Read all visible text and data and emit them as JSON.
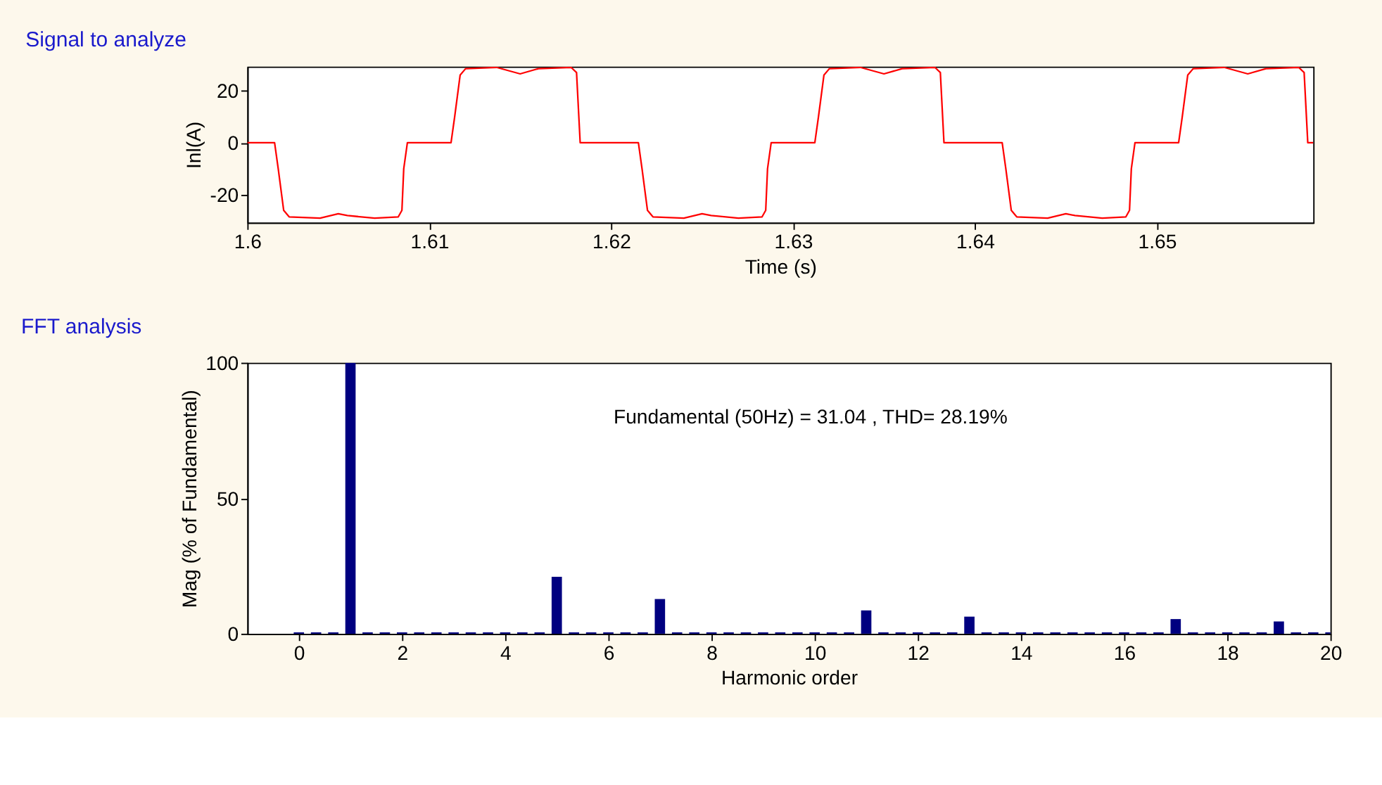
{
  "chart_data": [
    {
      "type": "line",
      "title": "Signal to analyze",
      "xlabel": "Time (s)",
      "ylabel": "Inl(A)",
      "xlim": [
        1.6,
        1.6586
      ],
      "xticks": [
        1.6,
        1.61,
        1.62,
        1.63,
        1.64,
        1.65
      ],
      "ylim": [
        -30.7,
        29.3
      ],
      "yticks": [
        -20,
        0,
        20
      ],
      "grid": false,
      "series": [
        {
          "color": "#ff0000",
          "x": [
            1.6,
            1.6015,
            1.6017,
            1.602,
            1.6023,
            1.604,
            1.605,
            1.6055,
            1.607,
            1.6083,
            1.6085,
            1.6086,
            1.6088,
            1.6112,
            1.6114,
            1.6117,
            1.612,
            1.6137,
            1.615,
            1.616,
            1.6178,
            1.6181,
            1.6183,
            1.62,
            1.6215,
            1.6217,
            1.622,
            1.6223,
            1.624,
            1.625,
            1.6255,
            1.627,
            1.6283,
            1.6285,
            1.6286,
            1.6288,
            1.6312,
            1.6314,
            1.6317,
            1.632,
            1.6337,
            1.635,
            1.636,
            1.6378,
            1.6381,
            1.6383,
            1.64,
            1.6415,
            1.6417,
            1.642,
            1.6423,
            1.644,
            1.645,
            1.6455,
            1.647,
            1.6483,
            1.6485,
            1.6486,
            1.6488,
            1.6512,
            1.6514,
            1.6517,
            1.652,
            1.6537,
            1.655,
            1.656,
            1.6578,
            1.6581,
            1.6583,
            1.6586
          ],
          "values": [
            0,
            0,
            -10,
            -26,
            -28.5,
            -29,
            -27.3,
            -28,
            -29,
            -28.5,
            -26,
            -10,
            0,
            0,
            10,
            26,
            28.5,
            29,
            26.5,
            28.5,
            29,
            27,
            0,
            0,
            0,
            -10,
            -26,
            -28.5,
            -29,
            -27.3,
            -28,
            -29,
            -28.5,
            -26,
            -10,
            0,
            0,
            10,
            26,
            28.5,
            29,
            26.5,
            28.5,
            29,
            27,
            0,
            0,
            0,
            -10,
            -26,
            -28.5,
            -29,
            -27.3,
            -28,
            -29,
            -28.5,
            -26,
            -10,
            0,
            0,
            10,
            26,
            28.5,
            29,
            26.5,
            28.5,
            29,
            27,
            0,
            0
          ]
        }
      ]
    },
    {
      "type": "bar",
      "title": "FFT analysis",
      "xlabel": "Harmonic order",
      "ylabel": "Mag (% of Fundamental)",
      "xlim": [
        -1,
        20
      ],
      "xticks": [
        0,
        2,
        4,
        6,
        8,
        10,
        12,
        14,
        16,
        18,
        20
      ],
      "ylim": [
        0,
        100
      ],
      "yticks": [
        0,
        50,
        100
      ],
      "grid": false,
      "annotations": [
        "Fundamental (50Hz) = 31.04 , THD= 28.19%"
      ],
      "series": [
        {
          "color": "#000080",
          "x": [
            0,
            0.333,
            0.667,
            1,
            1.333,
            1.667,
            2,
            2.333,
            2.667,
            3,
            3.333,
            3.667,
            4,
            4.333,
            4.667,
            5,
            5.333,
            5.667,
            6,
            6.333,
            6.667,
            7,
            7.333,
            7.667,
            8,
            8.333,
            8.667,
            9,
            9.333,
            9.667,
            10,
            10.333,
            10.667,
            11,
            11.333,
            11.667,
            12,
            12.333,
            12.667,
            13,
            13.333,
            13.667,
            14,
            14.333,
            14.667,
            15,
            15.333,
            15.667,
            16,
            16.333,
            16.667,
            17,
            17.333,
            17.667,
            18,
            18.333,
            18.667,
            19,
            19.333,
            19.667,
            20
          ],
          "values": [
            0.5,
            0.5,
            0.5,
            100,
            0.5,
            0.5,
            0.5,
            0.5,
            0.5,
            0.5,
            0.5,
            0.5,
            0.5,
            0.5,
            0.5,
            21,
            0.5,
            0.5,
            0.5,
            0.5,
            0.5,
            12.8,
            0.5,
            0.5,
            0.5,
            0.5,
            0.5,
            0.5,
            0.5,
            0.5,
            0.5,
            0.5,
            0.5,
            8.6,
            0.5,
            0.5,
            0.5,
            0.5,
            0.5,
            6.3,
            0.5,
            0.5,
            0.5,
            0.5,
            0.5,
            0.5,
            0.5,
            0.5,
            0.5,
            0.5,
            0.5,
            5.4,
            0.5,
            0.5,
            0.5,
            0.5,
            0.5,
            4.5,
            0.5,
            0.5,
            0.5
          ]
        }
      ]
    }
  ]
}
